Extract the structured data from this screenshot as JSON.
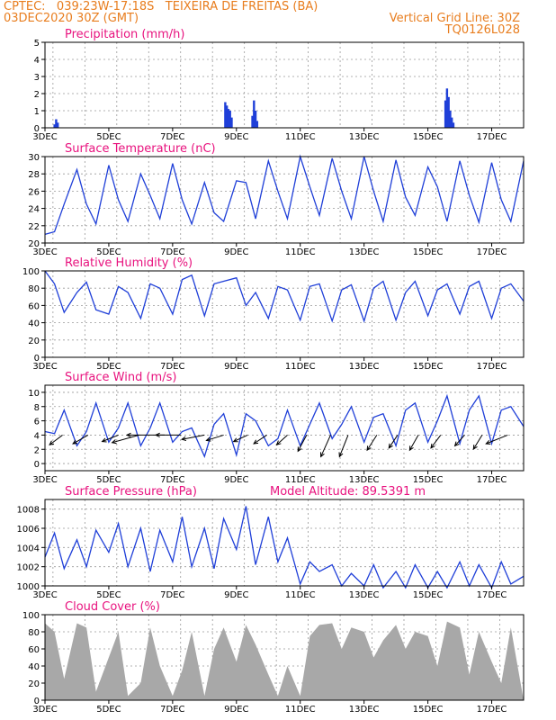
{
  "header": {
    "line1_left": "CPTEC:   039:23W-17:18S   TEIXEIRA DE FREITAS (BA)",
    "line2_left": "03DEC2020 30Z (GMT)",
    "line2_right": "Vertical Grid Line: 30Z",
    "line3_right": "TQ0126L028"
  },
  "colors": {
    "header": "#e87d1e",
    "title": "#e8127e",
    "series": "#1f3fd8",
    "cloud_fill": "#a8a8a8",
    "wind_arrow": "#000000",
    "grid": "#999999"
  },
  "x_ticks": [
    "3DEC",
    "5DEC",
    "7DEC",
    "9DEC",
    "11DEC",
    "13DEC",
    "15DEC",
    "17DEC"
  ],
  "chart_data": [
    {
      "id": "precip",
      "type": "bar",
      "title": "Precipitation (mm/h)",
      "ylim": [
        0,
        5
      ],
      "yticks": [
        "0",
        "1",
        "2",
        "3",
        "4",
        "5"
      ],
      "grid": true,
      "x": [
        3.3,
        3.35,
        3.4,
        8.65,
        8.7,
        8.75,
        8.8,
        8.85,
        9.5,
        9.55,
        9.6,
        9.65,
        15.55,
        15.6,
        15.65,
        15.7,
        15.75,
        15.8
      ],
      "values": [
        0.2,
        0.5,
        0.3,
        1.5,
        1.3,
        1.1,
        1.0,
        0.6,
        0.7,
        1.6,
        1.0,
        0.4,
        1.6,
        2.3,
        1.8,
        1.0,
        0.6,
        0.3
      ]
    },
    {
      "id": "temp",
      "type": "line",
      "title": "Surface Temperature (nC)",
      "ylim": [
        20,
        30
      ],
      "yticks": [
        "20",
        "22",
        "24",
        "26",
        "28",
        "30"
      ],
      "grid": true,
      "x": [
        3.0,
        3.3,
        3.6,
        4.0,
        4.3,
        4.6,
        5.0,
        5.3,
        5.6,
        6.0,
        6.3,
        6.6,
        7.0,
        7.3,
        7.6,
        8.0,
        8.3,
        8.6,
        9.0,
        9.3,
        9.6,
        10.0,
        10.3,
        10.6,
        11.0,
        11.3,
        11.6,
        12.0,
        12.3,
        12.6,
        13.0,
        13.3,
        13.6,
        14.0,
        14.3,
        14.6,
        15.0,
        15.3,
        15.6,
        16.0,
        16.3,
        16.6,
        17.0,
        17.3,
        17.6,
        18.0
      ],
      "values": [
        21,
        21.3,
        24.5,
        28.5,
        24.5,
        22.2,
        29,
        25,
        22.5,
        28,
        25.5,
        22.8,
        29.2,
        25,
        22.2,
        27,
        23.5,
        22.5,
        27.2,
        27,
        22.8,
        29.5,
        26,
        22.8,
        30,
        26.5,
        23.2,
        29.8,
        26,
        22.8,
        30,
        26,
        22.5,
        29.6,
        25.3,
        23.2,
        28.8,
        26.5,
        22.5,
        29.5,
        25.5,
        22.4,
        29.3,
        25,
        22.5,
        29.5
      ]
    },
    {
      "id": "rh",
      "type": "line",
      "title": "Relative Humidity (%)",
      "ylim": [
        0,
        100
      ],
      "yticks": [
        "0",
        "20",
        "40",
        "60",
        "80",
        "100"
      ],
      "grid": true,
      "x": [
        3.0,
        3.3,
        3.6,
        4.0,
        4.3,
        4.6,
        5.0,
        5.3,
        5.6,
        6.0,
        6.3,
        6.6,
        7.0,
        7.3,
        7.6,
        8.0,
        8.3,
        8.6,
        9.0,
        9.3,
        9.6,
        10.0,
        10.3,
        10.6,
        11.0,
        11.3,
        11.6,
        12.0,
        12.3,
        12.6,
        13.0,
        13.3,
        13.6,
        14.0,
        14.3,
        14.6,
        15.0,
        15.3,
        15.6,
        16.0,
        16.3,
        16.6,
        17.0,
        17.3,
        17.6,
        18.0
      ],
      "values": [
        100,
        85,
        52,
        75,
        87,
        55,
        50,
        82,
        75,
        45,
        85,
        80,
        50,
        90,
        95,
        48,
        85,
        88,
        92,
        60,
        75,
        45,
        82,
        78,
        43,
        82,
        85,
        42,
        78,
        84,
        42,
        80,
        88,
        43,
        75,
        88,
        48,
        78,
        85,
        50,
        82,
        88,
        45,
        80,
        85,
        65
      ]
    },
    {
      "id": "wind",
      "type": "line",
      "title": "Surface Wind (m/s)",
      "ylim": [
        -1,
        11
      ],
      "yticks": [
        "0",
        "2",
        "4",
        "6",
        "8",
        "10"
      ],
      "grid": true,
      "x": [
        3.0,
        3.3,
        3.6,
        4.0,
        4.3,
        4.6,
        5.0,
        5.3,
        5.6,
        6.0,
        6.3,
        6.6,
        7.0,
        7.3,
        7.6,
        8.0,
        8.3,
        8.6,
        9.0,
        9.3,
        9.6,
        10.0,
        10.3,
        10.6,
        11.0,
        11.3,
        11.6,
        12.0,
        12.3,
        12.6,
        13.0,
        13.3,
        13.6,
        14.0,
        14.3,
        14.6,
        15.0,
        15.3,
        15.6,
        16.0,
        16.3,
        16.6,
        17.0,
        17.3,
        17.6,
        18.0
      ],
      "values": [
        4.5,
        4.2,
        7.5,
        2.5,
        4.5,
        8.5,
        3,
        5,
        8.5,
        2.5,
        5,
        8.5,
        3,
        4.5,
        5,
        1,
        5.5,
        7,
        1.2,
        7,
        6,
        2.5,
        3.5,
        7.5,
        2.5,
        5.5,
        8.5,
        3.5,
        5.5,
        8,
        3,
        6.5,
        7,
        2.5,
        7.5,
        8.5,
        3,
        6,
        9.5,
        2.8,
        7.5,
        9.5,
        2.8,
        7.5,
        8,
        5.2
      ],
      "arrows_x": [
        3.55,
        4.35,
        5.3,
        5.95,
        6.75,
        7.25,
        8.0,
        8.6,
        9.35,
        9.95,
        10.6,
        11.2,
        11.95,
        12.5,
        13.4,
        14.05,
        14.7,
        15.4,
        16.15,
        16.7,
        17.5
      ],
      "arrows_u": [
        1.2,
        1.4,
        1.5,
        2.5,
        3.5,
        2.3,
        2.1,
        1.6,
        1.3,
        1.2,
        1.0,
        0.8,
        0.9,
        0.8,
        0.9,
        0.8,
        0.8,
        0.9,
        0.9,
        0.8,
        2.0
      ],
      "arrows_v": [
        -0.9,
        -0.8,
        -0.6,
        -0.7,
        0.0,
        0.0,
        -0.4,
        -0.5,
        -0.6,
        -0.8,
        -0.9,
        -1.5,
        -2.0,
        -2.0,
        -1.4,
        -1.2,
        -1.4,
        -1.2,
        -1.0,
        -1.3,
        -0.8
      ]
    },
    {
      "id": "press",
      "type": "line",
      "title": "Surface Pressure (hPa)",
      "annotation": "Model Altitude: 89.5391  m",
      "ylim": [
        1000,
        1009
      ],
      "yticks": [
        "1000",
        "1002",
        "1004",
        "1006",
        "1008"
      ],
      "grid": true,
      "x": [
        3.0,
        3.3,
        3.6,
        4.0,
        4.3,
        4.6,
        5.0,
        5.3,
        5.6,
        6.0,
        6.3,
        6.6,
        7.0,
        7.3,
        7.6,
        8.0,
        8.3,
        8.6,
        9.0,
        9.3,
        9.6,
        10.0,
        10.3,
        10.6,
        11.0,
        11.3,
        11.6,
        12.0,
        12.3,
        12.6,
        13.0,
        13.3,
        13.6,
        14.0,
        14.3,
        14.6,
        15.0,
        15.3,
        15.6,
        16.0,
        16.3,
        16.6,
        17.0,
        17.3,
        17.6,
        18.0
      ],
      "values": [
        1003,
        1005.5,
        1001.8,
        1004.8,
        1002,
        1005.8,
        1003.5,
        1006.5,
        1002,
        1006,
        1001.5,
        1005.8,
        1002.5,
        1007.2,
        1002,
        1006,
        1001.8,
        1007,
        1003.8,
        1008.3,
        1002.2,
        1007.2,
        1002.5,
        1005,
        1000.2,
        1002.5,
        1001.5,
        1002.2,
        1000,
        1001.3,
        1000,
        1002.2,
        999.8,
        1001.5,
        999.8,
        1002.2,
        999.8,
        1001.5,
        999.8,
        1002.5,
        1000,
        1002.2,
        999.8,
        1002.5,
        1000.2,
        1001
      ]
    },
    {
      "id": "cloud",
      "type": "area",
      "title": "Cloud Cover (%)",
      "ylim": [
        0,
        100
      ],
      "yticks": [
        "0",
        "20",
        "40",
        "60",
        "80",
        "100"
      ],
      "grid": true,
      "x": [
        3.0,
        3.3,
        3.6,
        4.0,
        4.3,
        4.6,
        5.0,
        5.3,
        5.6,
        6.0,
        6.3,
        6.6,
        7.0,
        7.3,
        7.6,
        8.0,
        8.3,
        8.6,
        9.0,
        9.3,
        9.6,
        10.0,
        10.3,
        10.6,
        11.0,
        11.3,
        11.6,
        12.0,
        12.3,
        12.6,
        13.0,
        13.3,
        13.6,
        14.0,
        14.3,
        14.6,
        15.0,
        15.3,
        15.6,
        16.0,
        16.3,
        16.6,
        17.0,
        17.3,
        17.6,
        18.0
      ],
      "values": [
        90,
        80,
        25,
        90,
        85,
        10,
        50,
        80,
        5,
        20,
        85,
        40,
        5,
        35,
        80,
        5,
        60,
        85,
        45,
        88,
        65,
        30,
        5,
        40,
        5,
        75,
        88,
        90,
        60,
        85,
        80,
        50,
        70,
        88,
        60,
        80,
        75,
        40,
        92,
        85,
        30,
        80,
        45,
        20,
        85,
        0
      ]
    }
  ]
}
